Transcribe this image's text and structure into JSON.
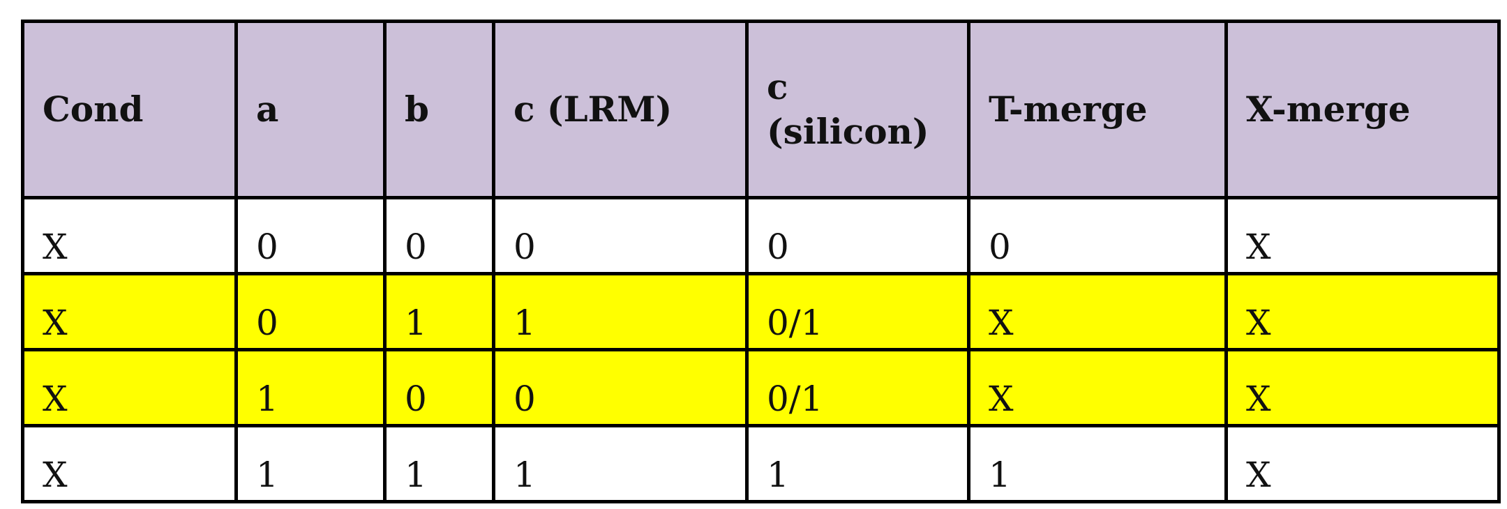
{
  "table": {
    "headers": [
      "Cond",
      "a",
      "b",
      "c (LRM)",
      "c (silicon)",
      "T-merge",
      "X-merge"
    ],
    "rows": [
      {
        "cells": [
          "X",
          "0",
          "0",
          "0",
          "0",
          "0",
          "X"
        ],
        "highlight": false
      },
      {
        "cells": [
          "X",
          "0",
          "1",
          "1",
          "0/1",
          "X",
          "X"
        ],
        "highlight": true
      },
      {
        "cells": [
          "X",
          "1",
          "0",
          "0",
          "0/1",
          "X",
          "X"
        ],
        "highlight": true
      },
      {
        "cells": [
          "X",
          "1",
          "1",
          "1",
          "1",
          "1",
          "X"
        ],
        "highlight": false
      }
    ]
  },
  "colors": {
    "header_bg": "#ccc0d9",
    "highlight_bg": "#ffff00",
    "border": "#000000"
  }
}
